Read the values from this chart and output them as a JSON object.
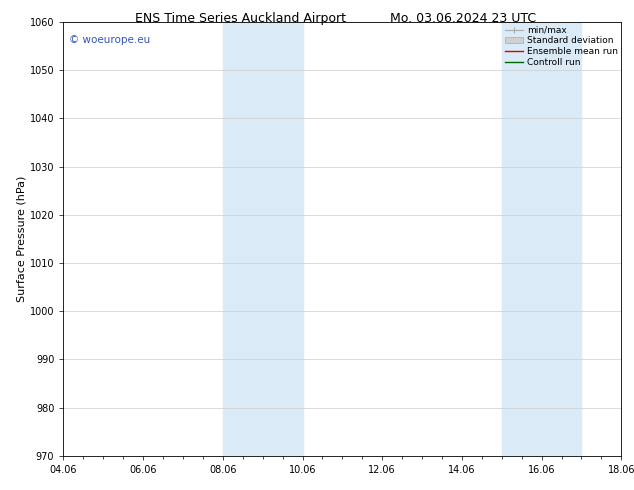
{
  "title_left": "ENS Time Series Auckland Airport",
  "title_right": "Mo. 03.06.2024 23 UTC",
  "ylabel": "Surface Pressure (hPa)",
  "ylim": [
    970,
    1060
  ],
  "yticks": [
    970,
    980,
    990,
    1000,
    1010,
    1020,
    1030,
    1040,
    1050,
    1060
  ],
  "xtick_labels": [
    "04.06",
    "06.06",
    "08.06",
    "10.06",
    "12.06",
    "14.06",
    "16.06",
    "18.06"
  ],
  "xtick_positions": [
    0,
    2,
    4,
    6,
    8,
    10,
    12,
    14
  ],
  "xlim": [
    0,
    14
  ],
  "shaded_bands": [
    {
      "x_start": 4.0,
      "x_end": 6.0
    },
    {
      "x_start": 11.0,
      "x_end": 13.0
    }
  ],
  "shade_color": "#daeaf7",
  "watermark": "© woeurope.eu",
  "watermark_color": "#3355bb",
  "background_color": "#ffffff",
  "plot_bg_color": "#ffffff",
  "grid_color": "#cccccc",
  "title_fontsize": 9,
  "ylabel_fontsize": 8,
  "tick_fontsize": 7,
  "watermark_fontsize": 7.5,
  "legend_fontsize": 6.5
}
